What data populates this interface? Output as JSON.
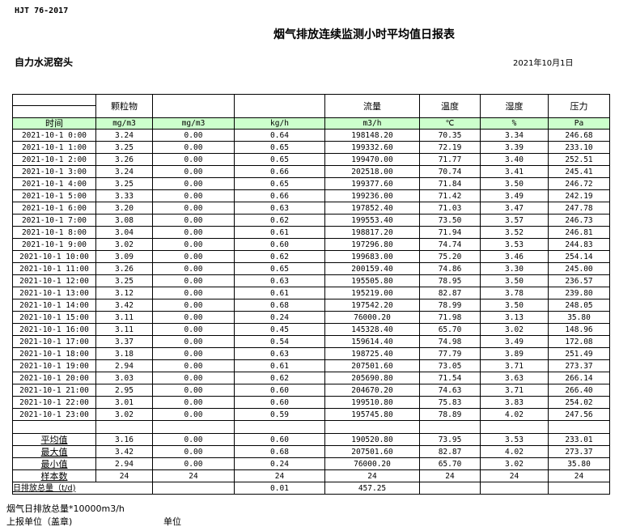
{
  "standard": "HJT  76-2017",
  "title": "烟气排放连续监测小时平均值日报表",
  "company": "自力水泥窑头",
  "date": "2021年10月1日",
  "header": [
    "",
    "颗粒物",
    "",
    "",
    "流量",
    "温度",
    "湿度",
    "压力"
  ],
  "units": [
    "时间",
    "mg/m3",
    "mg/m3",
    "kg/h",
    "m3/h",
    "℃",
    "%",
    "Pa"
  ],
  "rows": [
    [
      "2021-10-1 0:00",
      "3.24",
      "0.00",
      "0.64",
      "198148.20",
      "70.35",
      "3.34",
      "246.68"
    ],
    [
      "2021-10-1 1:00",
      "3.25",
      "0.00",
      "0.65",
      "199332.60",
      "72.19",
      "3.39",
      "233.10"
    ],
    [
      "2021-10-1 2:00",
      "3.26",
      "0.00",
      "0.65",
      "199470.00",
      "71.77",
      "3.40",
      "252.51"
    ],
    [
      "2021-10-1 3:00",
      "3.24",
      "0.00",
      "0.66",
      "202518.00",
      "70.74",
      "3.41",
      "245.41"
    ],
    [
      "2021-10-1 4:00",
      "3.25",
      "0.00",
      "0.65",
      "199377.60",
      "71.84",
      "3.50",
      "246.72"
    ],
    [
      "2021-10-1 5:00",
      "3.33",
      "0.00",
      "0.66",
      "199236.00",
      "71.42",
      "3.49",
      "242.19"
    ],
    [
      "2021-10-1 6:00",
      "3.20",
      "0.00",
      "0.63",
      "197852.40",
      "71.03",
      "3.47",
      "247.78"
    ],
    [
      "2021-10-1 7:00",
      "3.08",
      "0.00",
      "0.62",
      "199553.40",
      "73.50",
      "3.57",
      "246.73"
    ],
    [
      "2021-10-1 8:00",
      "3.04",
      "0.00",
      "0.61",
      "198817.20",
      "71.94",
      "3.52",
      "246.81"
    ],
    [
      "2021-10-1 9:00",
      "3.02",
      "0.00",
      "0.60",
      "197296.80",
      "74.74",
      "3.53",
      "244.83"
    ],
    [
      "2021-10-1 10:00",
      "3.09",
      "0.00",
      "0.62",
      "199683.00",
      "75.20",
      "3.46",
      "254.14"
    ],
    [
      "2021-10-1 11:00",
      "3.26",
      "0.00",
      "0.65",
      "200159.40",
      "74.86",
      "3.30",
      "245.00"
    ],
    [
      "2021-10-1 12:00",
      "3.25",
      "0.00",
      "0.63",
      "195505.80",
      "78.95",
      "3.50",
      "236.57"
    ],
    [
      "2021-10-1 13:00",
      "3.12",
      "0.00",
      "0.61",
      "195219.00",
      "82.87",
      "3.78",
      "239.80"
    ],
    [
      "2021-10-1 14:00",
      "3.42",
      "0.00",
      "0.68",
      "197542.20",
      "78.99",
      "3.50",
      "248.05"
    ],
    [
      "2021-10-1 15:00",
      "3.11",
      "0.00",
      "0.24",
      "76000.20",
      "71.98",
      "3.13",
      "35.80"
    ],
    [
      "2021-10-1 16:00",
      "3.11",
      "0.00",
      "0.45",
      "145328.40",
      "65.70",
      "3.02",
      "148.96"
    ],
    [
      "2021-10-1 17:00",
      "3.37",
      "0.00",
      "0.54",
      "159614.40",
      "74.98",
      "3.49",
      "172.08"
    ],
    [
      "2021-10-1 18:00",
      "3.18",
      "0.00",
      "0.63",
      "198725.40",
      "77.79",
      "3.89",
      "251.49"
    ],
    [
      "2021-10-1 19:00",
      "2.94",
      "0.00",
      "0.61",
      "207501.60",
      "73.05",
      "3.71",
      "273.37"
    ],
    [
      "2021-10-1 20:00",
      "3.03",
      "0.00",
      "0.62",
      "205690.80",
      "71.54",
      "3.63",
      "266.14"
    ],
    [
      "2021-10-1 21:00",
      "2.95",
      "0.00",
      "0.60",
      "204670.20",
      "74.63",
      "3.71",
      "266.40"
    ],
    [
      "2021-10-1 22:00",
      "3.01",
      "0.00",
      "0.60",
      "199510.80",
      "75.83",
      "3.83",
      "254.02"
    ],
    [
      "2021-10-1 23:00",
      "3.02",
      "0.00",
      "0.59",
      "195745.80",
      "78.89",
      "4.02",
      "247.56"
    ]
  ],
  "stats": [
    [
      "平均值",
      "3.16",
      "0.00",
      "0.60",
      "190520.80",
      "73.95",
      "3.53",
      "233.01"
    ],
    [
      "最大值",
      "3.42",
      "0.00",
      "0.68",
      "207501.60",
      "82.87",
      "4.02",
      "273.37"
    ],
    [
      "最小值",
      "2.94",
      "0.00",
      "0.24",
      "76000.20",
      "65.70",
      "3.02",
      "35.80"
    ],
    [
      "样本数",
      "24",
      "24",
      "24",
      "24",
      "24",
      "24",
      "24"
    ]
  ],
  "total": {
    "label": "日排放总量（t/d)",
    "values": [
      "",
      "0.01",
      "457.25",
      "",
      "",
      ""
    ]
  },
  "notes": {
    "flue_total": "烟气日排放总量*10000m3/h",
    "reporter": "上报单位（盖章)",
    "unit": "单位"
  }
}
